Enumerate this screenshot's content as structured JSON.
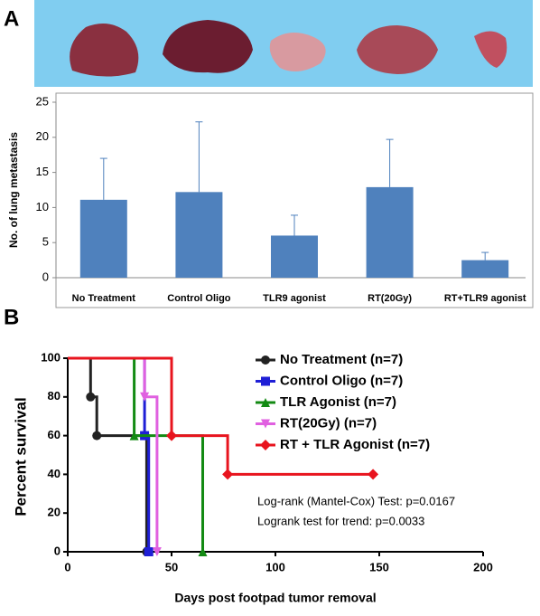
{
  "chart_data": [
    {
      "type": "bar",
      "panel": "A",
      "ylabel": "No. of lung metastasis",
      "categories": [
        "No Treatment",
        "Control Oligo",
        "TLR9 agonist",
        "RT(20Gy)",
        "RT+TLR9 agonist"
      ],
      "values": [
        11.1,
        12.2,
        6,
        12.9,
        2.5
      ],
      "errors": [
        5.9,
        10,
        2.9,
        6.8,
        1.1
      ],
      "color": "#4f81bd",
      "ylim": [
        0,
        25
      ],
      "yticks": [
        0,
        5,
        10,
        15,
        20,
        25
      ]
    },
    {
      "type": "step",
      "panel": "B",
      "xlabel": "Days post footpad tumor removal",
      "ylabel": "Percent survival",
      "xlim": [
        0,
        200
      ],
      "xticks": [
        0,
        50,
        100,
        150,
        200
      ],
      "ylim": [
        0,
        100
      ],
      "yticks": [
        0,
        20,
        40,
        60,
        80,
        100
      ],
      "series": [
        {
          "name": "No Treatment (n=7)",
          "color": "#222222",
          "marker": "circle",
          "x": [
            0,
            11,
            14,
            38
          ],
          "values": [
            100,
            80,
            60,
            0
          ]
        },
        {
          "name": "Control Oligo (n=7)",
          "color": "#1f1fd6",
          "marker": "square",
          "x": [
            0,
            37,
            39
          ],
          "values": [
            100,
            60,
            0
          ]
        },
        {
          "name": "TLR Agonist (n=7)",
          "color": "#138a13",
          "marker": "triangle",
          "x": [
            0,
            32,
            65
          ],
          "values": [
            100,
            60,
            0
          ]
        },
        {
          "name": "RT(20Gy) (n=7)",
          "color": "#e060e0",
          "marker": "triangle-down",
          "x": [
            0,
            37,
            43
          ],
          "values": [
            100,
            80,
            0
          ]
        },
        {
          "name": "RT + TLR Agonist (n=7)",
          "color": "#e8141e",
          "marker": "diamond",
          "x": [
            0,
            50,
            77,
            147
          ],
          "values": [
            100,
            60,
            40,
            40
          ]
        }
      ],
      "annotations": [
        "Log-rank (Mantel-Cox) Test: p=0.0167",
        "Logrank test for trend: p=0.0033"
      ]
    }
  ]
}
